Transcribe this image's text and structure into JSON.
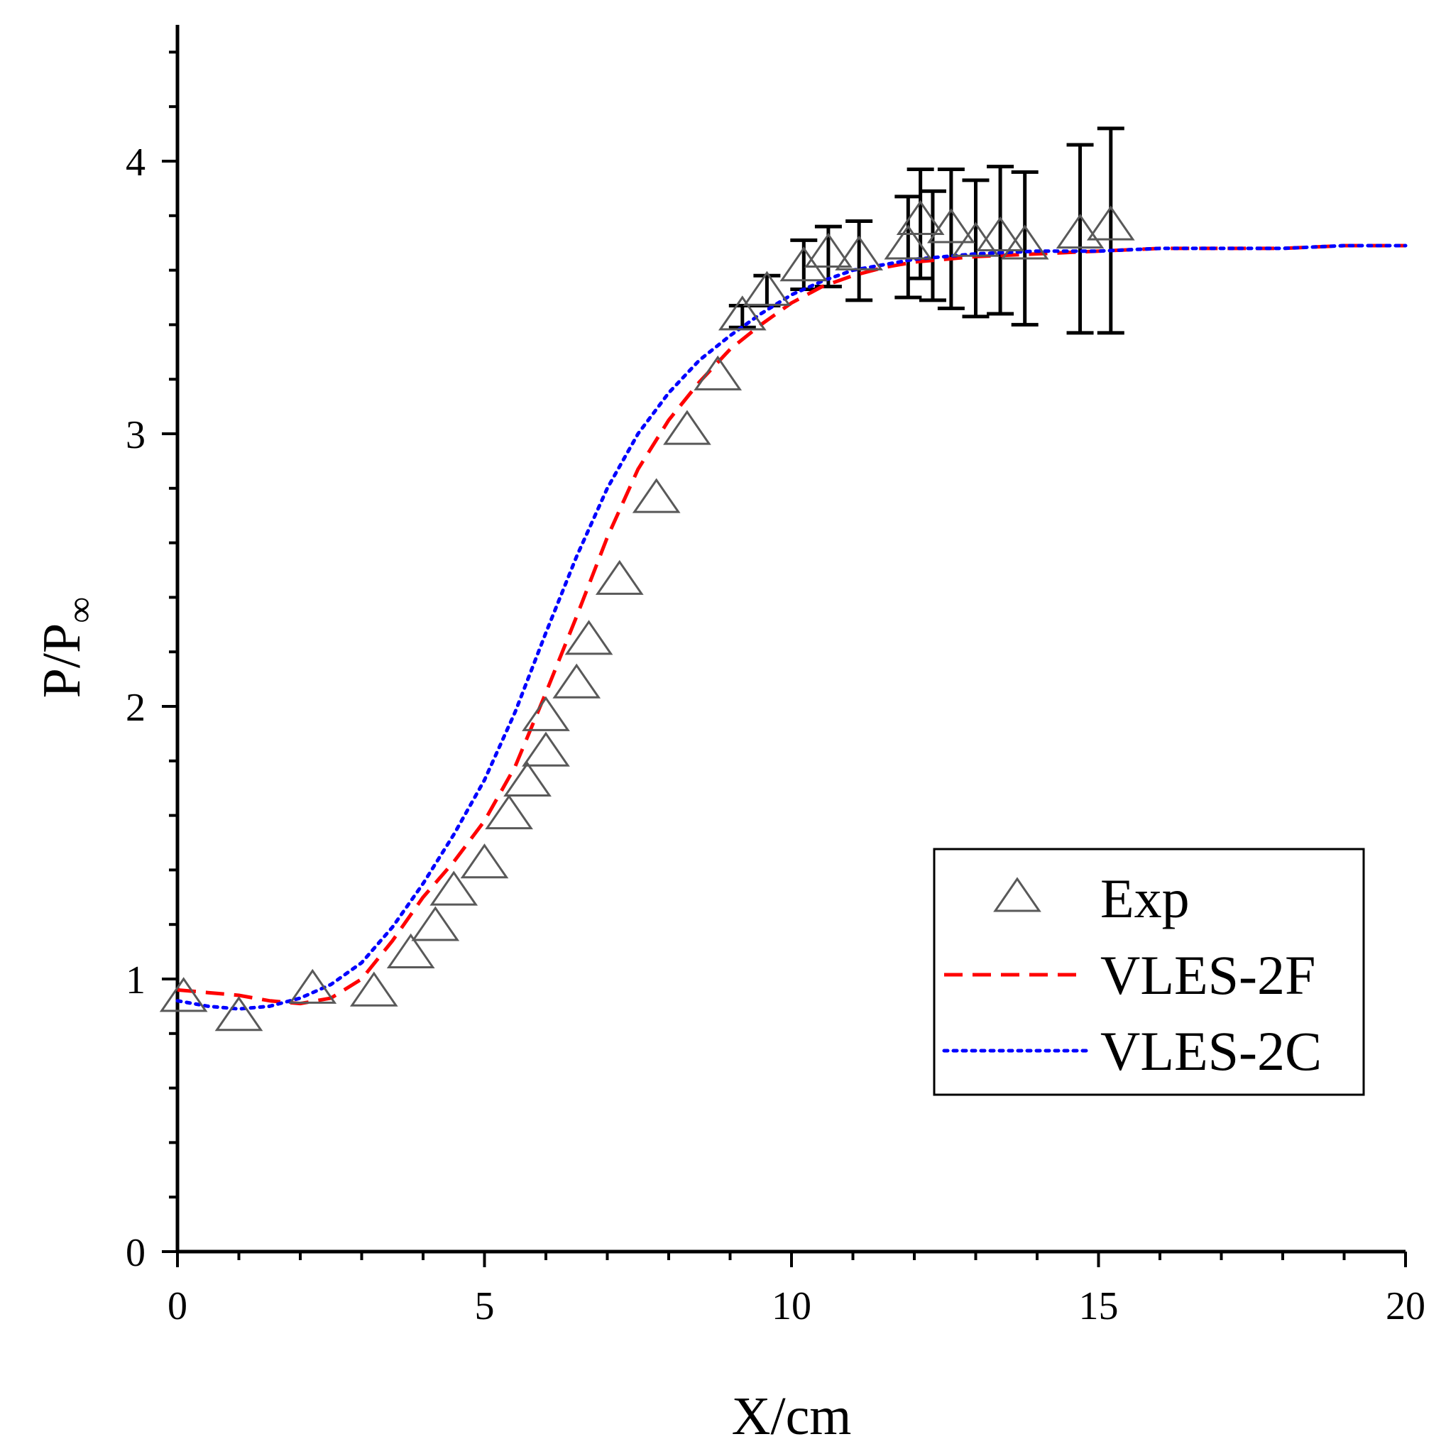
{
  "chart_data": {
    "type": "line",
    "title": "",
    "xlabel": "X/cm",
    "ylabel": "P/P∞",
    "xlim": [
      0,
      20
    ],
    "ylim": [
      0,
      4.5
    ],
    "x_major_ticks": [
      0,
      5,
      10,
      15,
      20
    ],
    "x_minor_step": 1,
    "y_major_ticks": [
      0,
      1,
      2,
      3,
      4
    ],
    "y_minor_step": 0.2,
    "grid": false,
    "legend_position": "right",
    "series": [
      {
        "name": "Exp",
        "marker": "open-triangle",
        "color": "#595959",
        "x": [
          0.1,
          1.0,
          2.2,
          3.2,
          3.8,
          4.2,
          4.5,
          5.0,
          5.4,
          5.7,
          6.0,
          6.0,
          6.5,
          6.7,
          7.2,
          7.8,
          8.3,
          8.8,
          9.2,
          9.6,
          10.2,
          10.6,
          11.1,
          11.9,
          12.1,
          12.6,
          13.0,
          13.4,
          13.8,
          14.7,
          15.2
        ],
        "y": [
          0.93,
          0.86,
          0.96,
          0.95,
          1.09,
          1.19,
          1.32,
          1.42,
          1.6,
          1.72,
          1.83,
          1.96,
          2.08,
          2.24,
          2.46,
          2.76,
          3.01,
          3.21,
          3.43,
          3.52,
          3.61,
          3.66,
          3.65,
          3.69,
          3.78,
          3.75,
          3.7,
          3.72,
          3.69,
          3.73,
          3.76
        ],
        "error_bars": [
          {
            "x": 9.2,
            "low": 3.39,
            "high": 3.47
          },
          {
            "x": 9.6,
            "low": 3.47,
            "high": 3.58
          },
          {
            "x": 10.2,
            "low": 3.53,
            "high": 3.71
          },
          {
            "x": 10.6,
            "low": 3.54,
            "high": 3.76
          },
          {
            "x": 11.1,
            "low": 3.49,
            "high": 3.78
          },
          {
            "x": 11.9,
            "low": 3.5,
            "high": 3.87
          },
          {
            "x": 12.1,
            "low": 3.57,
            "high": 3.97
          },
          {
            "x": 12.3,
            "low": 3.49,
            "high": 3.89
          },
          {
            "x": 12.6,
            "low": 3.46,
            "high": 3.97
          },
          {
            "x": 13.0,
            "low": 3.43,
            "high": 3.93
          },
          {
            "x": 13.4,
            "low": 3.44,
            "high": 3.98
          },
          {
            "x": 13.8,
            "low": 3.4,
            "high": 3.96
          },
          {
            "x": 14.7,
            "low": 3.37,
            "high": 4.06
          },
          {
            "x": 15.2,
            "low": 3.37,
            "high": 4.12
          }
        ]
      },
      {
        "name": "VLES-2F",
        "line_style": "dashed",
        "color": "#ff0000",
        "x": [
          0,
          0.5,
          1.0,
          1.5,
          2.0,
          2.5,
          3.0,
          3.5,
          4.0,
          4.5,
          5.0,
          5.5,
          6.0,
          6.5,
          7.0,
          7.5,
          8.0,
          8.5,
          9.0,
          9.5,
          10.0,
          10.5,
          11.0,
          11.5,
          12.0,
          12.5,
          13.0,
          14.0,
          15.0,
          16.0,
          17.0,
          18.0,
          19.0,
          20.0
        ],
        "y": [
          0.96,
          0.95,
          0.94,
          0.92,
          0.91,
          0.93,
          1.0,
          1.14,
          1.3,
          1.43,
          1.58,
          1.78,
          2.05,
          2.33,
          2.62,
          2.87,
          3.05,
          3.19,
          3.31,
          3.4,
          3.48,
          3.54,
          3.58,
          3.61,
          3.63,
          3.64,
          3.65,
          3.66,
          3.67,
          3.68,
          3.68,
          3.68,
          3.69,
          3.69
        ]
      },
      {
        "name": "VLES-2C",
        "line_style": "dotted",
        "color": "#0000ff",
        "x": [
          0,
          0.5,
          1.0,
          1.5,
          2.0,
          2.5,
          3.0,
          3.5,
          4.0,
          4.5,
          5.0,
          5.5,
          6.0,
          6.5,
          7.0,
          7.5,
          8.0,
          8.5,
          9.0,
          9.5,
          10.0,
          10.5,
          11.0,
          11.5,
          12.0,
          12.5,
          13.0,
          14.0,
          15.0,
          16.0,
          17.0,
          18.0,
          19.0,
          20.0
        ],
        "y": [
          0.92,
          0.9,
          0.89,
          0.9,
          0.93,
          0.98,
          1.06,
          1.19,
          1.35,
          1.53,
          1.73,
          1.98,
          2.27,
          2.55,
          2.8,
          3.0,
          3.15,
          3.27,
          3.36,
          3.44,
          3.51,
          3.56,
          3.6,
          3.62,
          3.64,
          3.65,
          3.66,
          3.67,
          3.67,
          3.68,
          3.68,
          3.68,
          3.69,
          3.69
        ]
      }
    ]
  }
}
